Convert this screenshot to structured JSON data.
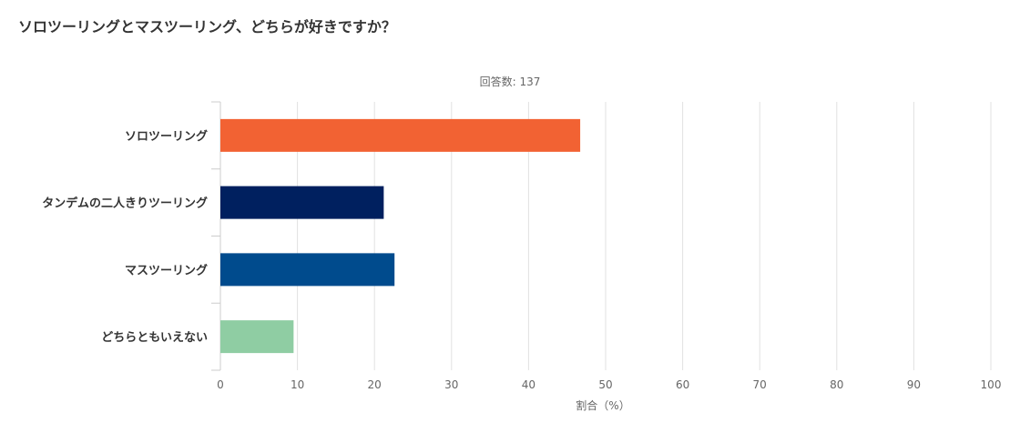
{
  "chart_data": {
    "type": "bar",
    "orientation": "horizontal",
    "title": "ソロツーリングとマスツーリング、どちらが好きですか？",
    "subtitle": "回答数: 137",
    "xlabel": "割合（%）",
    "ylabel": "",
    "xlim": [
      0,
      100
    ],
    "x_ticks": [
      0,
      10,
      20,
      30,
      40,
      50,
      60,
      70,
      80,
      90,
      100
    ],
    "grid": true,
    "legend": "none",
    "categories": [
      "ソロツーリング",
      "タンデムの二人きりツーリング",
      "マスツーリング",
      "どちらともいえない"
    ],
    "values": [
      46.7,
      21.2,
      22.6,
      9.5
    ],
    "colors": [
      "#F26233",
      "#00205F",
      "#004B8D",
      "#8FCDA3"
    ]
  }
}
